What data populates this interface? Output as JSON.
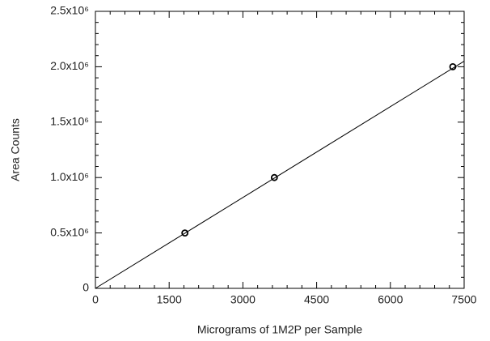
{
  "chart_data": {
    "type": "scatter",
    "x_label": "Micrograms of 1M2P per Sample",
    "y_label": "Area Counts",
    "xlim": [
      0,
      7500
    ],
    "xticks": [
      0,
      1500,
      3000,
      4500,
      6000,
      7500
    ],
    "ylim": [
      0,
      2500000
    ],
    "yticks": [
      0,
      {
        "value": 500000,
        "label": "0.5x10⁶"
      },
      {
        "value": 1000000,
        "label": "1.0x10⁶"
      },
      {
        "value": 1500000,
        "label": "1.5x10⁶"
      },
      {
        "value": 2000000,
        "label": "2.0x10⁶"
      },
      {
        "value": 2500000,
        "label": "2.5x10⁶"
      }
    ],
    "color": "#000000",
    "points": {
      "x": [
        1820,
        3640,
        7270
      ],
      "values": [
        500000,
        1000000,
        2000000
      ]
    },
    "fit": {
      "x": [
        0,
        7500
      ],
      "values": [
        0,
        2050000
      ]
    }
  }
}
